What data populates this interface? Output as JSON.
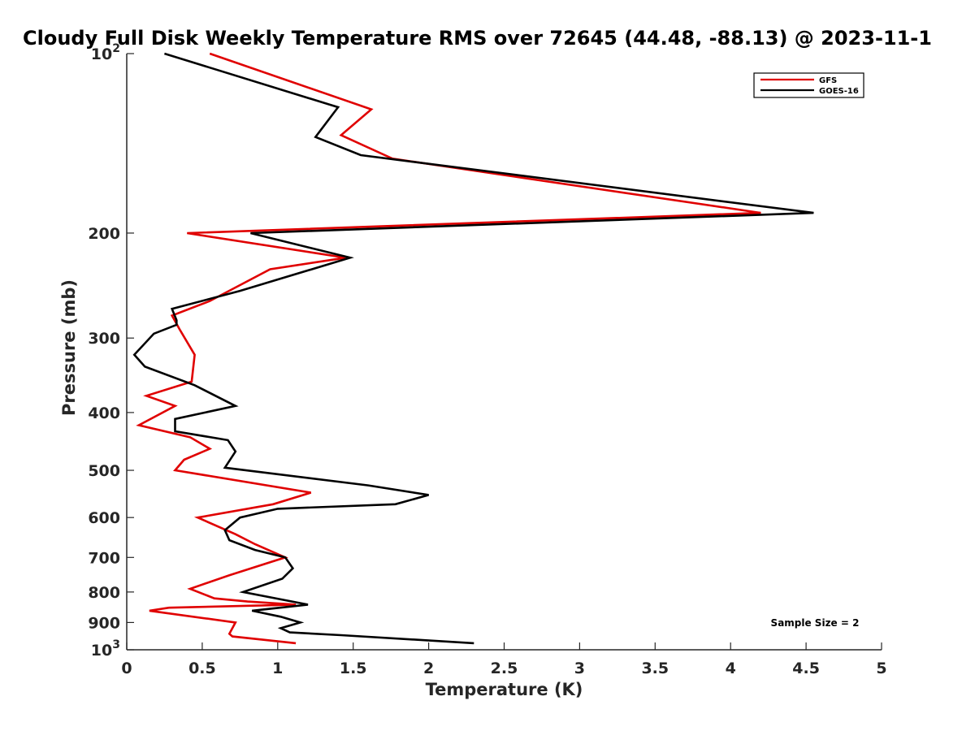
{
  "chart_data": {
    "type": "line",
    "title": "Cloudy Full Disk Weekly Temperature RMS over 72645 (44.48, -88.13) @ 2023-11-1",
    "xlabel": "Temperature (K)",
    "ylabel": "Pressure (mb)",
    "xlim": [
      0,
      5
    ],
    "ylim": [
      100,
      1000
    ],
    "y_scale": "log",
    "y_reversed": true,
    "x_ticks": [
      "0",
      "0.5",
      "1",
      "1.5",
      "2",
      "2.5",
      "3",
      "3.5",
      "4",
      "4.5",
      "5"
    ],
    "y_ticks": [
      {
        "value": 100,
        "base": "10",
        "exp": "2"
      },
      {
        "value": 200,
        "label": "200"
      },
      {
        "value": 300,
        "label": "300"
      },
      {
        "value": 400,
        "label": "400"
      },
      {
        "value": 500,
        "label": "500"
      },
      {
        "value": 600,
        "label": "600"
      },
      {
        "value": 700,
        "label": "700"
      },
      {
        "value": 800,
        "label": "800"
      },
      {
        "value": 900,
        "label": "900"
      },
      {
        "value": 1000,
        "base": "10",
        "exp": "3"
      }
    ],
    "legend_position": "top-right",
    "annotation": "Sample Size = 2",
    "series": [
      {
        "name": "GFS",
        "color": "#e00000",
        "points": [
          [
            0.55,
            100
          ],
          [
            1.62,
            124
          ],
          [
            1.42,
            137
          ],
          [
            1.76,
            150
          ],
          [
            4.2,
            185
          ],
          [
            0.4,
            200
          ],
          [
            1.45,
            220
          ],
          [
            0.95,
            230
          ],
          [
            0.55,
            260
          ],
          [
            0.3,
            275
          ],
          [
            0.35,
            290
          ],
          [
            0.45,
            320
          ],
          [
            0.43,
            355
          ],
          [
            0.13,
            375
          ],
          [
            0.32,
            390
          ],
          [
            0.08,
            420
          ],
          [
            0.42,
            440
          ],
          [
            0.55,
            460
          ],
          [
            0.38,
            480
          ],
          [
            0.32,
            500
          ],
          [
            1.22,
            545
          ],
          [
            0.97,
            570
          ],
          [
            0.47,
            600
          ],
          [
            0.72,
            640
          ],
          [
            0.85,
            665
          ],
          [
            1.05,
            700
          ],
          [
            0.68,
            750
          ],
          [
            0.42,
            790
          ],
          [
            0.58,
            820
          ],
          [
            0.8,
            830
          ],
          [
            1.12,
            840
          ],
          [
            0.28,
            850
          ],
          [
            0.15,
            860
          ],
          [
            0.72,
            900
          ],
          [
            0.68,
            940
          ],
          [
            0.7,
            950
          ],
          [
            1.12,
            975
          ]
        ]
      },
      {
        "name": "GOES-16",
        "color": "#000000",
        "points": [
          [
            0.25,
            100
          ],
          [
            1.4,
            123
          ],
          [
            1.25,
            138
          ],
          [
            1.55,
            148
          ],
          [
            4.55,
            185
          ],
          [
            0.82,
            200
          ],
          [
            1.48,
            220
          ],
          [
            0.75,
            250
          ],
          [
            0.3,
            268
          ],
          [
            0.33,
            280
          ],
          [
            0.33,
            285
          ],
          [
            0.18,
            295
          ],
          [
            0.05,
            320
          ],
          [
            0.12,
            335
          ],
          [
            0.45,
            360
          ],
          [
            0.72,
            390
          ],
          [
            0.32,
            410
          ],
          [
            0.32,
            430
          ],
          [
            0.67,
            445
          ],
          [
            0.72,
            465
          ],
          [
            0.65,
            495
          ],
          [
            1.6,
            530
          ],
          [
            2.0,
            550
          ],
          [
            1.78,
            570
          ],
          [
            1.0,
            580
          ],
          [
            0.75,
            600
          ],
          [
            0.65,
            630
          ],
          [
            0.68,
            655
          ],
          [
            0.85,
            680
          ],
          [
            1.05,
            700
          ],
          [
            1.1,
            730
          ],
          [
            1.03,
            760
          ],
          [
            0.77,
            800
          ],
          [
            1.2,
            840
          ],
          [
            0.83,
            860
          ],
          [
            1.02,
            880
          ],
          [
            1.15,
            900
          ],
          [
            1.02,
            920
          ],
          [
            1.08,
            935
          ],
          [
            1.42,
            945
          ],
          [
            2.3,
            975
          ]
        ]
      }
    ]
  }
}
